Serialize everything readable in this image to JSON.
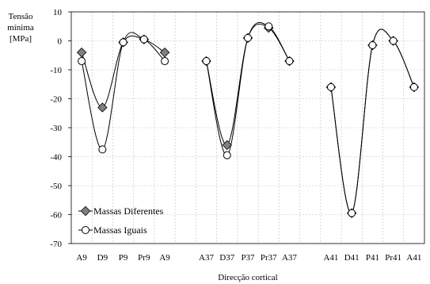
{
  "chart_data": {
    "type": "line",
    "ylabel": [
      "Tensão",
      "mínima",
      "[MPa]"
    ],
    "xlabel": "Direcção cortical",
    "ylim": [
      -70,
      10
    ],
    "yticks": [
      10,
      0,
      -10,
      -20,
      -30,
      -40,
      -50,
      -60,
      -70
    ],
    "grid": true,
    "legend_position": "bottom-left",
    "categories": [
      "A9",
      "D9",
      "P9",
      "Pr9",
      "A9",
      "",
      "A37",
      "D37",
      "P37",
      "Pr37",
      "A37",
      "",
      "A41",
      "D41",
      "P41",
      "Pr41",
      "A41"
    ],
    "groups": [
      {
        "categories": [
          "A9",
          "D9",
          "P9",
          "Pr9",
          "A9"
        ],
        "series": [
          {
            "name": "Massas Diferentes",
            "values": [
              -4,
              -23,
              -0.5,
              0.5,
              -4
            ]
          },
          {
            "name": "Massas Iguais",
            "values": [
              -7,
              -37.5,
              -0.5,
              0.5,
              -7
            ]
          }
        ]
      },
      {
        "categories": [
          "A37",
          "D37",
          "P37",
          "Pr37",
          "A37"
        ],
        "series": [
          {
            "name": "Massas Diferentes",
            "values": [
              -7,
              -36,
              1,
              4.5,
              -7
            ]
          },
          {
            "name": "Massas Iguais",
            "values": [
              -7,
              -39.5,
              1,
              5,
              -7
            ]
          }
        ]
      },
      {
        "categories": [
          "A41",
          "D41",
          "P41",
          "Pr41",
          "A41"
        ],
        "series": [
          {
            "name": "Massas Diferentes",
            "values": [
              -16,
              -59.5,
              -1.5,
              0,
              -16
            ]
          },
          {
            "name": "Massas Iguais",
            "values": [
              -16,
              -59.5,
              -1.5,
              0,
              -16
            ]
          }
        ]
      }
    ],
    "legend": [
      {
        "name": "Massas Diferentes",
        "marker": "diamond-filled"
      },
      {
        "name": "Massas Iguais",
        "marker": "circle-open"
      }
    ],
    "colors": {
      "line": "#000000",
      "diamond_fill": "#808080",
      "circle_fill": "#ffffff",
      "grid": "#bfbfbf"
    }
  }
}
